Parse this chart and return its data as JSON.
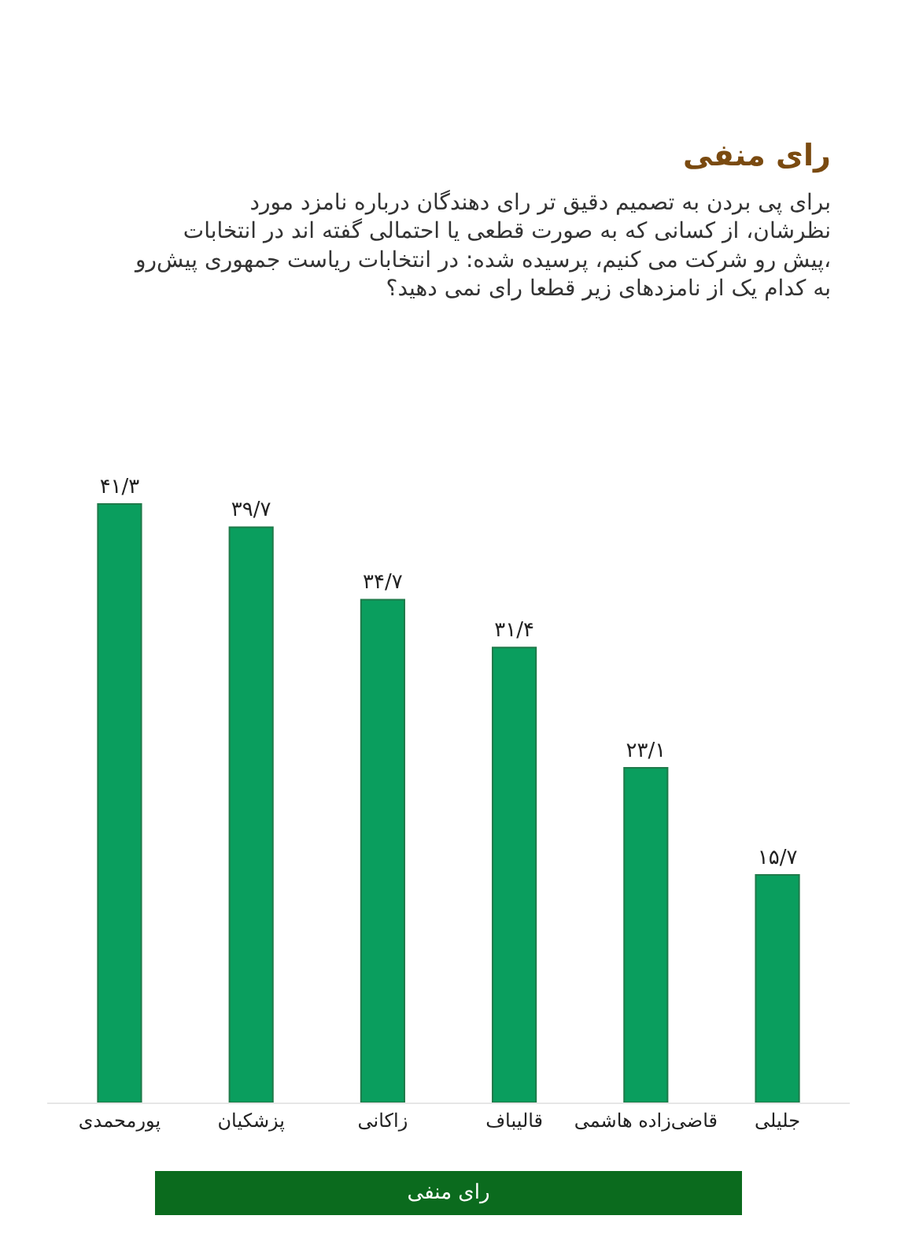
{
  "chart_data": {
    "type": "bar",
    "title": "رای منفی",
    "subtitle": "برای پی بردن به تصمیم دقیق تر رای دهندگان درباره نامزد مورد نظرشان، از کسانی که به صورت قطعی یا احتمالی گفته اند در انتخابات پیش رو شرکت می کنیم، پرسیده شده: در انتخابات ریاست جمهوری پیش‌رو، به کدام یک از نامزدهای زیر قطعا رای نمی دهید؟",
    "categories": [
      "پورمحمدی",
      "پزشکیان",
      "زاکانی",
      "قالیباف",
      "قاضی‌زاده هاشمی",
      "جلیلی"
    ],
    "values": [
      41.3,
      39.7,
      34.7,
      31.4,
      23.1,
      15.7
    ],
    "value_labels": [
      "۴۱/۳",
      "۳۹/۷",
      "۳۴/۷",
      "۳۱/۴",
      "۲۳/۱",
      "۱۵/۷"
    ],
    "color": "#0a9e5e",
    "annotations": [
      "رای منفی"
    ],
    "legend": false
  }
}
